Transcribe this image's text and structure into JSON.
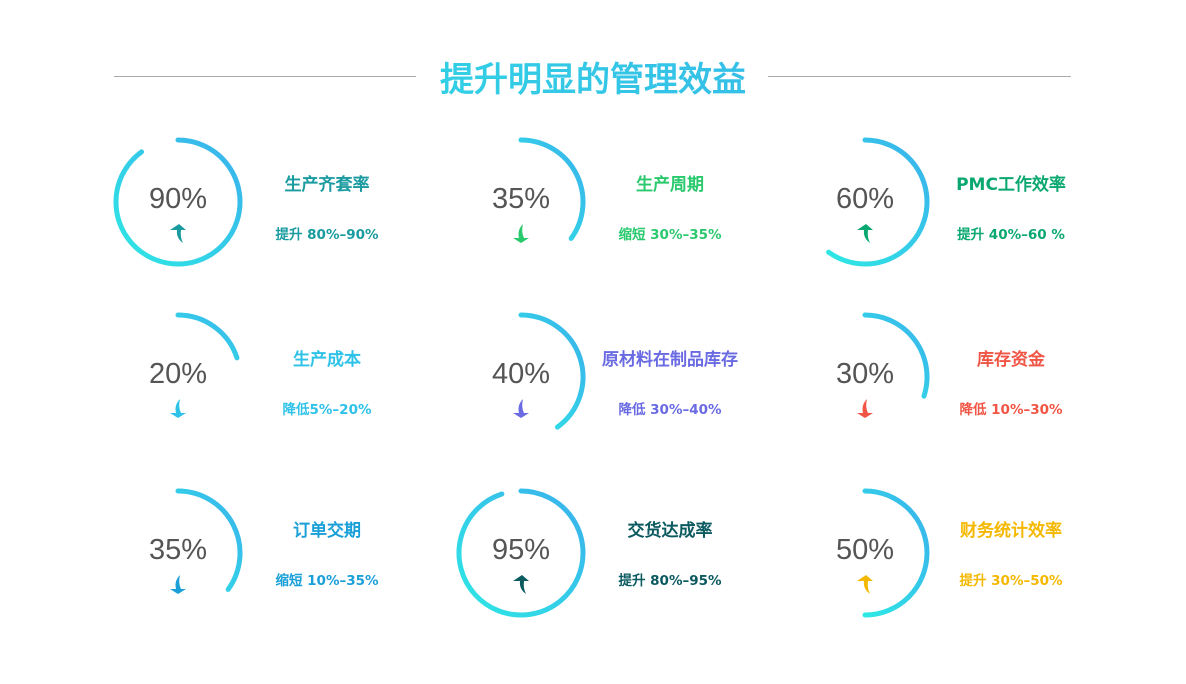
{
  "title": "提升明显的管理效益",
  "ring_gradient": [
    "#2ee8e4",
    "#3ab0ec"
  ],
  "items": [
    {
      "percent": 90,
      "label": "90%",
      "title": "生产齐套率",
      "desc": "提升 80%–90%",
      "color": "#1a9ba0",
      "arrow": "up-arrow"
    },
    {
      "percent": 35,
      "label": "35%",
      "title": "生产周期",
      "desc": "缩短 30%–35%",
      "color": "#2bc96e",
      "arrow": "down-arrow"
    },
    {
      "percent": 60,
      "label": "60%",
      "title": "PMC工作效率",
      "desc": "提升 40%–60 %",
      "color": "#0aa870",
      "arrow": "up-arrow"
    },
    {
      "percent": 20,
      "label": "20%",
      "title": "生产成本",
      "desc": "降低5%–20%",
      "color": "#2ec2e8",
      "arrow": "down-arrow"
    },
    {
      "percent": 40,
      "label": "40%",
      "title": "原材料在制品库存",
      "desc": "降低 30%–40%",
      "color": "#6a6ae2",
      "arrow": "down-arrow"
    },
    {
      "percent": 30,
      "label": "30%",
      "title": "库存资金",
      "desc": "降低 10%–30%",
      "color": "#f05545",
      "arrow": "down-arrow"
    },
    {
      "percent": 35,
      "label": "35%",
      "title": "订单交期",
      "desc": "缩短 10%–35%",
      "color": "#1a9fd8",
      "arrow": "down-arrow"
    },
    {
      "percent": 95,
      "label": "95%",
      "title": "交货达成率",
      "desc": "提升 80%–95%",
      "color": "#0b5a60",
      "arrow": "up-arrow"
    },
    {
      "percent": 50,
      "label": "50%",
      "title": "财务统计效率",
      "desc": "提升 30%–50%",
      "color": "#f5b800",
      "arrow": "up-arrow"
    }
  ]
}
